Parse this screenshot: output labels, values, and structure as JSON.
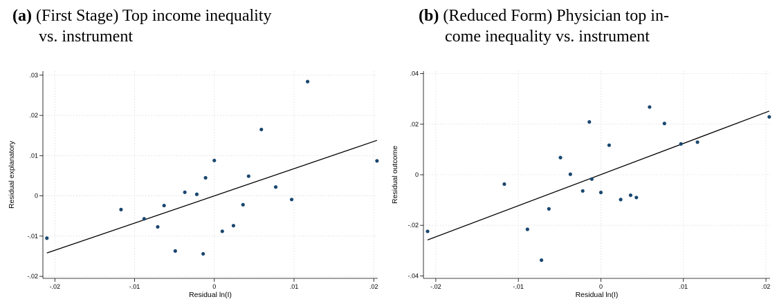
{
  "chart_data": [
    {
      "type": "scatter",
      "panel_tag": "(a)",
      "caption_line1": "(First Stage) Top income inequality",
      "caption_line2": "vs. instrument",
      "xlabel": "Residual ln(I)",
      "ylabel": "Residual explanatory",
      "xlim": [
        -0.0215,
        0.0205
      ],
      "ylim": [
        -0.0205,
        0.031
      ],
      "xticks": [
        -0.02,
        -0.01,
        0,
        0.01,
        0.02
      ],
      "xtick_labels": [
        "-.02",
        "-.01",
        "0",
        ".01",
        ".02"
      ],
      "yticks": [
        -0.02,
        -0.01,
        0,
        0.01,
        0.02,
        0.03
      ],
      "ytick_labels": [
        "-.02",
        "-.01",
        "0",
        ".01",
        ".02",
        ".03"
      ],
      "grid": true,
      "point_color": "#1a476f",
      "points": [
        {
          "x": -0.021,
          "y": -0.0105
        },
        {
          "x": -0.0117,
          "y": -0.0034
        },
        {
          "x": -0.0088,
          "y": -0.0057
        },
        {
          "x": -0.0071,
          "y": -0.0077
        },
        {
          "x": -0.0063,
          "y": -0.0024
        },
        {
          "x": -0.0049,
          "y": -0.0137
        },
        {
          "x": -0.0037,
          "y": 0.0009
        },
        {
          "x": -0.0022,
          "y": 0.0004
        },
        {
          "x": -0.0014,
          "y": -0.0144
        },
        {
          "x": -0.0011,
          "y": 0.0045
        },
        {
          "x": 0.0,
          "y": 0.0088
        },
        {
          "x": 0.001,
          "y": -0.0088
        },
        {
          "x": 0.0024,
          "y": -0.0074
        },
        {
          "x": 0.0036,
          "y": -0.0022
        },
        {
          "x": 0.0043,
          "y": 0.0049
        },
        {
          "x": 0.0059,
          "y": 0.0165
        },
        {
          "x": 0.0077,
          "y": 0.0022
        },
        {
          "x": 0.0097,
          "y": -0.0009
        },
        {
          "x": 0.0117,
          "y": 0.0284
        },
        {
          "x": 0.0204,
          "y": 0.0087
        }
      ],
      "fit_line": {
        "x": [
          -0.021,
          0.0204
        ],
        "y": [
          -0.0142,
          0.0138
        ]
      }
    },
    {
      "type": "scatter",
      "panel_tag": "(b)",
      "caption_line1": "(Reduced Form) Physician top in-",
      "caption_line2": "come inequality vs. instrument",
      "xlabel": "Residual ln(I)",
      "ylabel": "Residual outcome",
      "xlim": [
        -0.0215,
        0.0205
      ],
      "ylim": [
        -0.041,
        0.041
      ],
      "xticks": [
        -0.02,
        -0.01,
        0,
        0.01,
        0.02
      ],
      "xtick_labels": [
        "-.02",
        "-.01",
        "0",
        ".01",
        ".02"
      ],
      "yticks": [
        -0.04,
        -0.02,
        0,
        0.02,
        0.04
      ],
      "ytick_labels": [
        "-.04",
        "-.02",
        "0",
        ".02",
        ".04"
      ],
      "grid": true,
      "point_color": "#1a476f",
      "points": [
        {
          "x": -0.021,
          "y": -0.0224
        },
        {
          "x": -0.0117,
          "y": -0.0037
        },
        {
          "x": -0.0089,
          "y": -0.0216
        },
        {
          "x": -0.0072,
          "y": -0.0338
        },
        {
          "x": -0.0063,
          "y": -0.0135
        },
        {
          "x": -0.0049,
          "y": 0.0068
        },
        {
          "x": -0.0037,
          "y": 0.0002
        },
        {
          "x": -0.0022,
          "y": -0.0064
        },
        {
          "x": -0.0014,
          "y": 0.0209
        },
        {
          "x": -0.0011,
          "y": -0.0017
        },
        {
          "x": 0.0,
          "y": -0.007
        },
        {
          "x": 0.001,
          "y": 0.0117
        },
        {
          "x": 0.0024,
          "y": -0.0098
        },
        {
          "x": 0.0036,
          "y": -0.0081
        },
        {
          "x": 0.0043,
          "y": -0.009
        },
        {
          "x": 0.0059,
          "y": 0.0268
        },
        {
          "x": 0.0077,
          "y": 0.0203
        },
        {
          "x": 0.0097,
          "y": 0.0122
        },
        {
          "x": 0.0117,
          "y": 0.0129
        },
        {
          "x": 0.0204,
          "y": 0.0229
        }
      ],
      "fit_line": {
        "x": [
          -0.021,
          0.0204
        ],
        "y": [
          -0.0258,
          0.0252
        ]
      }
    }
  ]
}
